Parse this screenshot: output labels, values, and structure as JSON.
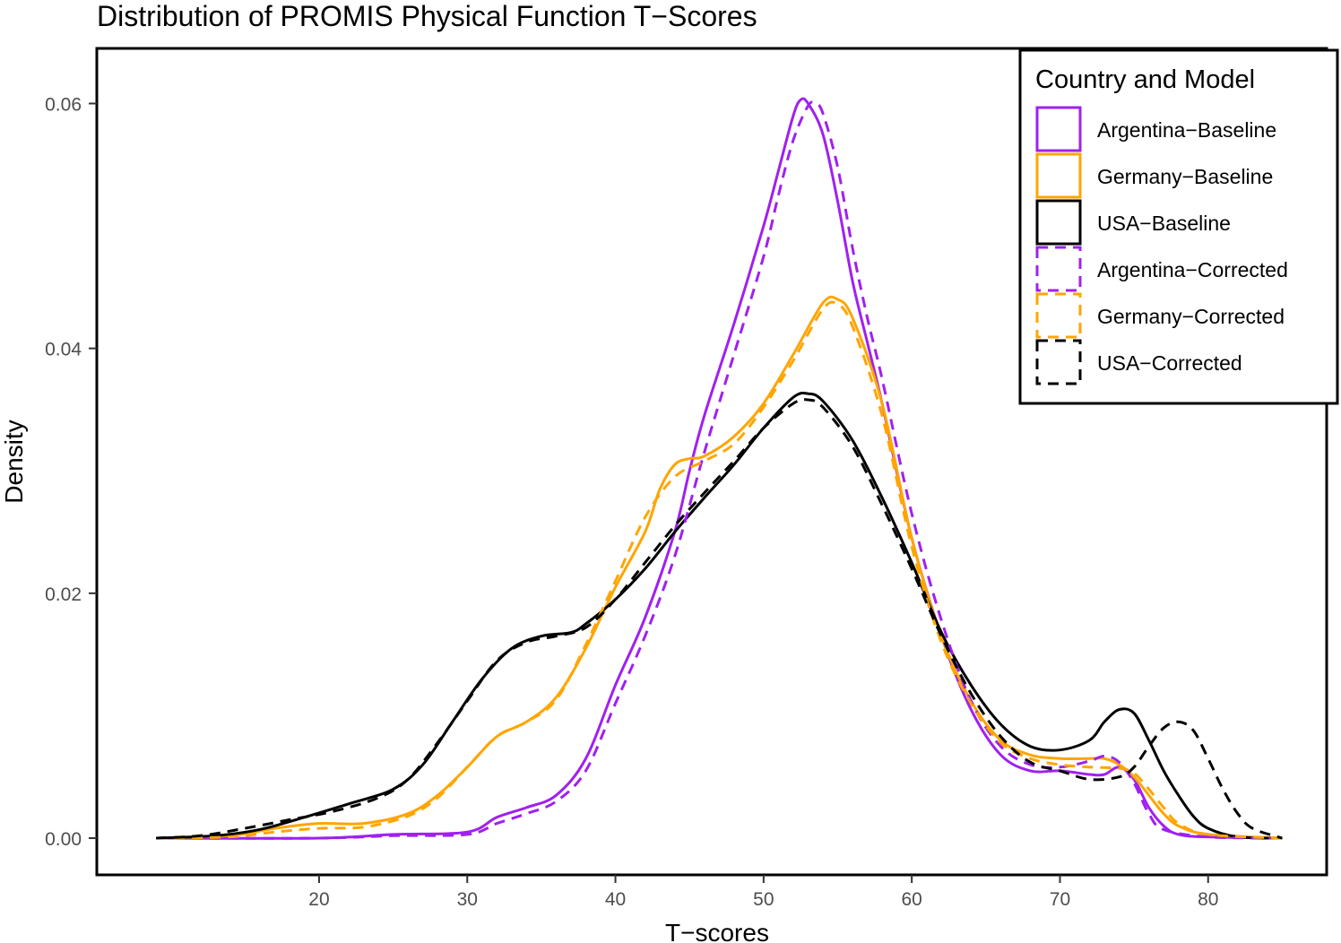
{
  "chart_data": {
    "type": "line",
    "title": "Distribution of PROMIS Physical Function T−Scores",
    "xlabel": "T−scores",
    "ylabel": "Density",
    "xlim": [
      5,
      88
    ],
    "ylim": [
      -0.003,
      0.0645
    ],
    "x_ticks": [
      20,
      30,
      40,
      50,
      60,
      70,
      80
    ],
    "x_tick_labels": [
      "20",
      "30",
      "40",
      "50",
      "60",
      "70",
      "80"
    ],
    "y_ticks": [
      0,
      0.02,
      0.04,
      0.06
    ],
    "y_tick_labels": [
      "0.00",
      "0.02",
      "0.04",
      "0.06"
    ],
    "grid": false,
    "legend": {
      "title": "Country and Model",
      "position": "top-right",
      "entries": [
        "Argentina−Baseline",
        "Germany−Baseline",
        "USA−Baseline",
        "Argentina−Corrected",
        "Germany−Corrected",
        "USA−Corrected"
      ]
    },
    "colors": {
      "Argentina": "#a020f0",
      "Germany": "#ffa500",
      "USA": "#000000"
    },
    "series": [
      {
        "name": "Argentina−Baseline",
        "color": "#a020f0",
        "linestyle": "solid",
        "points": [
          [
            9,
            0
          ],
          [
            20,
            0
          ],
          [
            25,
            0.0003
          ],
          [
            30,
            0.0005
          ],
          [
            32,
            0.0017
          ],
          [
            34,
            0.0025
          ],
          [
            36,
            0.0035
          ],
          [
            38,
            0.0065
          ],
          [
            40,
            0.0125
          ],
          [
            42,
            0.018
          ],
          [
            44,
            0.025
          ],
          [
            45,
            0.03
          ],
          [
            46,
            0.0345
          ],
          [
            48,
            0.042
          ],
          [
            50,
            0.05
          ],
          [
            51,
            0.0545
          ],
          [
            52,
            0.059
          ],
          [
            52.5,
            0.0603
          ],
          [
            53,
            0.06
          ],
          [
            54,
            0.0575
          ],
          [
            55,
            0.052
          ],
          [
            56,
            0.0455
          ],
          [
            57,
            0.0405
          ],
          [
            58,
            0.0355
          ],
          [
            60,
            0.0245
          ],
          [
            62,
            0.0165
          ],
          [
            64,
            0.0105
          ],
          [
            66,
            0.0068
          ],
          [
            68,
            0.0055
          ],
          [
            70,
            0.0055
          ],
          [
            72,
            0.0052
          ],
          [
            73,
            0.0052
          ],
          [
            74,
            0.0058
          ],
          [
            75,
            0.0048
          ],
          [
            76,
            0.0025
          ],
          [
            77,
            0.001
          ],
          [
            78,
            0.0003
          ],
          [
            80,
            0.0001
          ],
          [
            85,
            0
          ]
        ]
      },
      {
        "name": "Germany−Baseline",
        "color": "#ffa500",
        "linestyle": "solid",
        "points": [
          [
            9,
            0
          ],
          [
            14,
            0.0002
          ],
          [
            17,
            0.0008
          ],
          [
            20,
            0.0012
          ],
          [
            23,
            0.0012
          ],
          [
            26,
            0.002
          ],
          [
            28,
            0.0035
          ],
          [
            30,
            0.0058
          ],
          [
            32,
            0.0083
          ],
          [
            34,
            0.0095
          ],
          [
            36,
            0.0115
          ],
          [
            38,
            0.0155
          ],
          [
            40,
            0.0205
          ],
          [
            42,
            0.025
          ],
          [
            43,
            0.0285
          ],
          [
            44,
            0.0305
          ],
          [
            45,
            0.031
          ],
          [
            46,
            0.0312
          ],
          [
            48,
            0.0328
          ],
          [
            50,
            0.0355
          ],
          [
            52,
            0.0395
          ],
          [
            54,
            0.0437
          ],
          [
            55,
            0.044
          ],
          [
            56,
            0.0425
          ],
          [
            58,
            0.0355
          ],
          [
            60,
            0.0245
          ],
          [
            62,
            0.0165
          ],
          [
            64,
            0.0112
          ],
          [
            66,
            0.008
          ],
          [
            68,
            0.0068
          ],
          [
            70,
            0.0065
          ],
          [
            72,
            0.0065
          ],
          [
            73,
            0.0065
          ],
          [
            74,
            0.006
          ],
          [
            75,
            0.005
          ],
          [
            76,
            0.0035
          ],
          [
            77,
            0.002
          ],
          [
            78,
            0.001
          ],
          [
            80,
            0.0003
          ],
          [
            85,
            0
          ]
        ]
      },
      {
        "name": "USA−Baseline",
        "color": "#000000",
        "linestyle": "solid",
        "points": [
          [
            9,
            0
          ],
          [
            13,
            0.0002
          ],
          [
            16,
            0.0007
          ],
          [
            19,
            0.0017
          ],
          [
            22,
            0.0028
          ],
          [
            25,
            0.004
          ],
          [
            27,
            0.006
          ],
          [
            29,
            0.0095
          ],
          [
            31,
            0.013
          ],
          [
            33,
            0.0155
          ],
          [
            35,
            0.0165
          ],
          [
            37,
            0.0168
          ],
          [
            38,
            0.0175
          ],
          [
            40,
            0.0195
          ],
          [
            42,
            0.022
          ],
          [
            44,
            0.025
          ],
          [
            46,
            0.0278
          ],
          [
            48,
            0.0305
          ],
          [
            50,
            0.0335
          ],
          [
            52,
            0.036
          ],
          [
            53,
            0.0363
          ],
          [
            54,
            0.0357
          ],
          [
            56,
            0.0325
          ],
          [
            58,
            0.0278
          ],
          [
            60,
            0.0225
          ],
          [
            62,
            0.0168
          ],
          [
            64,
            0.0125
          ],
          [
            66,
            0.0093
          ],
          [
            68,
            0.0075
          ],
          [
            70,
            0.0072
          ],
          [
            72,
            0.008
          ],
          [
            73,
            0.0095
          ],
          [
            74,
            0.0105
          ],
          [
            75,
            0.0102
          ],
          [
            76,
            0.008
          ],
          [
            77,
            0.0055
          ],
          [
            78,
            0.0035
          ],
          [
            79,
            0.0018
          ],
          [
            80,
            0.0008
          ],
          [
            82,
            0.0001
          ],
          [
            85,
            0
          ]
        ]
      },
      {
        "name": "Argentina−Corrected",
        "color": "#a020f0",
        "linestyle": "dashed",
        "points": [
          [
            9,
            0
          ],
          [
            20,
            0
          ],
          [
            25,
            0.0002
          ],
          [
            30,
            0.0003
          ],
          [
            32,
            0.0012
          ],
          [
            34,
            0.002
          ],
          [
            36,
            0.003
          ],
          [
            38,
            0.0055
          ],
          [
            40,
            0.011
          ],
          [
            42,
            0.0165
          ],
          [
            44,
            0.023
          ],
          [
            46,
            0.0315
          ],
          [
            48,
            0.0395
          ],
          [
            50,
            0.0475
          ],
          [
            51,
            0.0525
          ],
          [
            52,
            0.057
          ],
          [
            53,
            0.0598
          ],
          [
            53.5,
            0.06
          ],
          [
            54,
            0.0592
          ],
          [
            55,
            0.0548
          ],
          [
            56,
            0.0482
          ],
          [
            57,
            0.0425
          ],
          [
            58,
            0.0375
          ],
          [
            60,
            0.0265
          ],
          [
            62,
            0.0178
          ],
          [
            64,
            0.0112
          ],
          [
            66,
            0.0075
          ],
          [
            68,
            0.006
          ],
          [
            70,
            0.0058
          ],
          [
            72,
            0.0063
          ],
          [
            73,
            0.0067
          ],
          [
            74,
            0.0062
          ],
          [
            75,
            0.0045
          ],
          [
            76,
            0.002
          ],
          [
            77,
            0.0007
          ],
          [
            80,
            0.0001
          ],
          [
            85,
            0
          ]
        ]
      },
      {
        "name": "Germany−Corrected",
        "color": "#ffa500",
        "linestyle": "dashed",
        "points": [
          [
            9,
            0
          ],
          [
            14,
            0.0001
          ],
          [
            17,
            0.0005
          ],
          [
            20,
            0.0008
          ],
          [
            23,
            0.0009
          ],
          [
            26,
            0.0018
          ],
          [
            28,
            0.0033
          ],
          [
            30,
            0.0058
          ],
          [
            32,
            0.0083
          ],
          [
            34,
            0.0095
          ],
          [
            36,
            0.0113
          ],
          [
            38,
            0.0158
          ],
          [
            40,
            0.021
          ],
          [
            42,
            0.0262
          ],
          [
            44,
            0.0295
          ],
          [
            46,
            0.0308
          ],
          [
            48,
            0.0322
          ],
          [
            50,
            0.0352
          ],
          [
            52,
            0.039
          ],
          [
            54,
            0.0432
          ],
          [
            55,
            0.0436
          ],
          [
            56,
            0.0418
          ],
          [
            58,
            0.0345
          ],
          [
            60,
            0.0238
          ],
          [
            62,
            0.016
          ],
          [
            64,
            0.011
          ],
          [
            66,
            0.0078
          ],
          [
            68,
            0.0065
          ],
          [
            70,
            0.006
          ],
          [
            72,
            0.0058
          ],
          [
            74,
            0.0057
          ],
          [
            75,
            0.0053
          ],
          [
            76,
            0.004
          ],
          [
            77,
            0.0025
          ],
          [
            78,
            0.0012
          ],
          [
            80,
            0.0003
          ],
          [
            85,
            0
          ]
        ]
      },
      {
        "name": "USA−Corrected",
        "color": "#000000",
        "linestyle": "dashed",
        "points": [
          [
            9,
            0
          ],
          [
            12,
            0.0002
          ],
          [
            15,
            0.0008
          ],
          [
            18,
            0.0015
          ],
          [
            21,
            0.0022
          ],
          [
            24,
            0.0033
          ],
          [
            26,
            0.0048
          ],
          [
            28,
            0.0078
          ],
          [
            30,
            0.0112
          ],
          [
            32,
            0.0145
          ],
          [
            34,
            0.016
          ],
          [
            36,
            0.0165
          ],
          [
            38,
            0.0172
          ],
          [
            40,
            0.0195
          ],
          [
            42,
            0.0225
          ],
          [
            44,
            0.0255
          ],
          [
            46,
            0.0282
          ],
          [
            48,
            0.0308
          ],
          [
            50,
            0.0335
          ],
          [
            52,
            0.0355
          ],
          [
            53,
            0.0358
          ],
          [
            54,
            0.0352
          ],
          [
            56,
            0.032
          ],
          [
            58,
            0.0272
          ],
          [
            60,
            0.022
          ],
          [
            62,
            0.0165
          ],
          [
            64,
            0.0118
          ],
          [
            66,
            0.0083
          ],
          [
            68,
            0.0062
          ],
          [
            70,
            0.0055
          ],
          [
            72,
            0.0048
          ],
          [
            74,
            0.005
          ],
          [
            75,
            0.0058
          ],
          [
            76,
            0.0075
          ],
          [
            77,
            0.009
          ],
          [
            78,
            0.0095
          ],
          [
            79,
            0.0088
          ],
          [
            80,
            0.0065
          ],
          [
            81,
            0.004
          ],
          [
            82,
            0.002
          ],
          [
            83,
            0.0008
          ],
          [
            85,
            0
          ]
        ]
      }
    ]
  }
}
